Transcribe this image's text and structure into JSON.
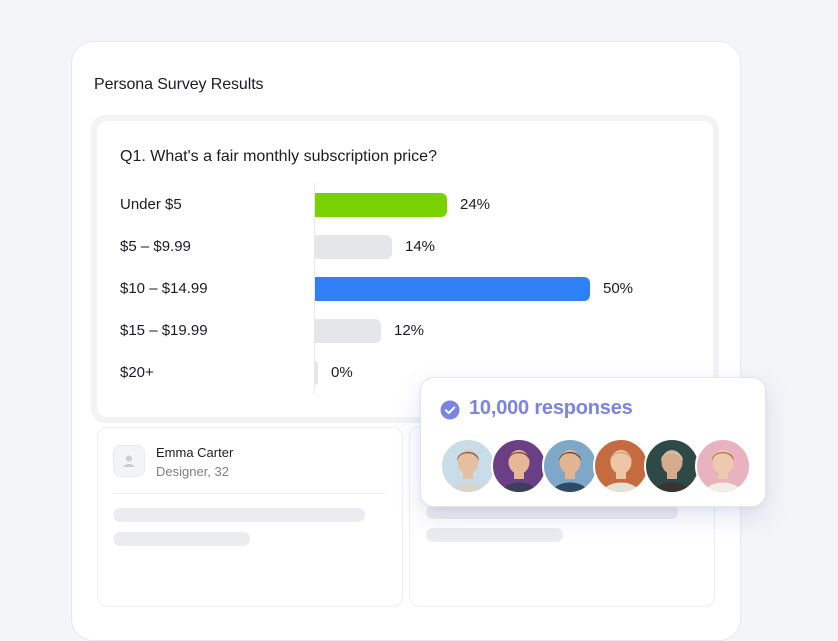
{
  "app": {
    "title": "Persona Survey Results"
  },
  "survey": {
    "question": "Q1. What's a fair monthly subscription price?",
    "options": [
      {
        "label": "Under $5",
        "value": 24,
        "percent_label": "24%",
        "color": "#7ad100"
      },
      {
        "label": "$5 – $9.99",
        "value": 14,
        "percent_label": "14%",
        "color": "#e5e6e8"
      },
      {
        "label": "$10 – $14.99",
        "value": 50,
        "percent_label": "50%",
        "color": "#2f80f7"
      },
      {
        "label": "$15 – $19.99",
        "value": 12,
        "percent_label": "12%",
        "color": "#e5e6e8"
      },
      {
        "label": "$20+",
        "value": 0,
        "percent_label": "0%",
        "color": "#e5e6e8"
      }
    ]
  },
  "persona": {
    "name": "Emma Carter",
    "role": "Designer, 32",
    "icon": "user-icon"
  },
  "responses": {
    "count_label": "10,000 responses",
    "icon": "check-circle-icon",
    "accent_color": "#7b83e3",
    "avatars": [
      {
        "name": "avatar-1",
        "bg": "#c8dde8",
        "skin": "#e6bfa3",
        "hair": "#8a5a3b",
        "shirt": "#d9d4cc"
      },
      {
        "name": "avatar-2",
        "bg": "#6b3f86",
        "skin": "#e7b896",
        "hair": "#7a4a2a",
        "shirt": "#3b3f58"
      },
      {
        "name": "avatar-3",
        "bg": "#7fa7c8",
        "skin": "#e3b491",
        "hair": "#5a4636",
        "shirt": "#2e4a66"
      },
      {
        "name": "avatar-4",
        "bg": "#c66b3f",
        "skin": "#edc6a6",
        "hair": "#c8a27a",
        "shirt": "#e6e0d6"
      },
      {
        "name": "avatar-5",
        "bg": "#2f4a46",
        "skin": "#d6ab8c",
        "hair": "#c9c9c6",
        "shirt": "#3a3330"
      },
      {
        "name": "avatar-6",
        "bg": "#e8b3bf",
        "skin": "#efc9ae",
        "hair": "#a8713f",
        "shirt": "#f4ece6"
      }
    ]
  }
}
